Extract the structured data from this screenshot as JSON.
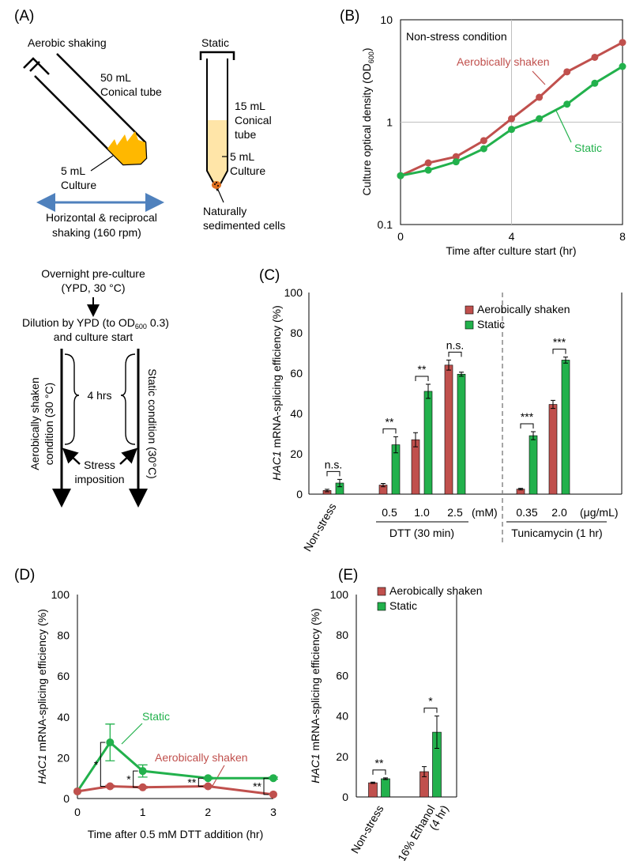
{
  "colors": {
    "shaken": "#C0504D",
    "static": "#22B14C",
    "axis": "#000000",
    "grid": "#BFBFBF",
    "tube_liquid": "#FFE5A8",
    "culture_orange": "#FFB800",
    "arrow_blue": "#4F81BD",
    "pellet": "#E07020"
  },
  "panel_a": {
    "label": "(A)",
    "aerobic_title": "Aerobic shaking",
    "tube50_line1": "50 mL",
    "tube50_line2": "Conical tube",
    "culture_left_line1": "5 mL",
    "culture_left_line2": "Culture",
    "shaking_line1": "Horizontal & reciprocal",
    "shaking_line2": "shaking (160 rpm)",
    "static_title": "Static",
    "tube15_line1": "15 mL",
    "tube15_line2": "Conical",
    "tube15_line3": "tube",
    "culture_right_line1": "5 mL",
    "culture_right_line2": "Culture",
    "sediment_line1": "Naturally",
    "sediment_line2": "sedimented cells",
    "preculture_line1": "Overnight pre-culture",
    "preculture_line2": "(YPD, 30 °C)",
    "dilution_line1a": "Dilution by YPD (to OD",
    "dilution_sub": "600",
    "dilution_line1b": " 0.3)",
    "dilution_line2": "and culture start",
    "hours": "4 hrs",
    "stress_line1": "Stress",
    "stress_line2": "imposition",
    "left_condition_line1": "Aerobically shaken",
    "left_condition_line2": "condition (30 °C)",
    "right_condition": "Static condition (30°C)"
  },
  "panel_b": {
    "label": "(B)",
    "annotation": "Non-stress condition",
    "ylabel_main": "Culture optical density (OD",
    "ylabel_sub": "600",
    "ylabel_end": ")",
    "series_shaken_label": "Aerobically shaken",
    "series_static_label": "Static"
  },
  "panel_c": {
    "label": "(C)",
    "ylabel_italic": "HAC1",
    "ylabel_rest": " mRNA-splicing efficiency (%)",
    "legend_shaken": "Aerobically shaken",
    "legend_static": "Static",
    "unit_mm": "(mM)",
    "unit_ugml": "(μg/mL)",
    "group_dtt": "DTT (30 min)",
    "group_tunicamycin": "Tunicamycin (1 hr)",
    "sig": [
      "n.s.",
      "**",
      "**",
      "n.s.",
      "***",
      "***"
    ]
  },
  "panel_d": {
    "label": "(D)",
    "ylabel_italic": "HAC1",
    "ylabel_rest": " mRNA-splicing efficiency (%)",
    "series_static_label": "Static",
    "series_shaken_label": "Aerobically shaken",
    "sig": [
      "*",
      "*",
      "**",
      "**"
    ]
  },
  "panel_e": {
    "label": "(E)",
    "ylabel_italic": "HAC1",
    "ylabel_rest": " mRNA-splicing efficiency (%)",
    "legend_shaken": "Aerobically shaken",
    "legend_static": "Static",
    "sig": [
      "**",
      "*"
    ]
  },
  "chart_data": [
    {
      "id": "B",
      "type": "line",
      "title": "Non-stress condition",
      "xlabel": "Time after culture start (hr)",
      "ylabel": "Culture optical density (OD600)",
      "yscale": "log",
      "xlim": [
        0,
        8
      ],
      "ylim": [
        0.1,
        10
      ],
      "xticks": [
        0,
        4,
        8
      ],
      "yticks": [
        0.1,
        1,
        10
      ],
      "ytick_labels": [
        "0.1",
        "1",
        "10"
      ],
      "grid": true,
      "x": [
        0,
        1,
        2,
        3,
        4,
        5,
        6,
        7,
        8
      ],
      "series": [
        {
          "name": "Aerobically shaken",
          "values": [
            0.3,
            0.4,
            0.46,
            0.66,
            1.08,
            1.75,
            3.1,
            4.3,
            6.0
          ]
        },
        {
          "name": "Static",
          "values": [
            0.3,
            0.34,
            0.41,
            0.55,
            0.85,
            1.08,
            1.5,
            2.4,
            3.5
          ]
        }
      ]
    },
    {
      "id": "C",
      "type": "bar",
      "ylabel": "HAC1 mRNA-splicing efficiency (%)",
      "ylim": [
        0,
        100
      ],
      "yticks": [
        0,
        20,
        40,
        60,
        80,
        100
      ],
      "categories": [
        "Non-stress",
        "0.5",
        "1.0",
        "2.5",
        "0.35",
        "2.0"
      ],
      "series": [
        {
          "name": "Aerobically shaken",
          "values": [
            1.8,
            4.5,
            27,
            64,
            2.5,
            44.5
          ],
          "errors": [
            0.6,
            0.8,
            3.5,
            2.5,
            0.4,
            2
          ]
        },
        {
          "name": "Static",
          "values": [
            5.5,
            24.5,
            51,
            59.5,
            29,
            66.5
          ],
          "errors": [
            1.8,
            4,
            3.5,
            1,
            2,
            1.5
          ]
        }
      ]
    },
    {
      "id": "D",
      "type": "line",
      "xlabel": "Time after 0.5 mM DTT addition (hr)",
      "ylabel": "HAC1 mRNA-splicing efficiency (%)",
      "xlim": [
        0,
        3
      ],
      "ylim": [
        0,
        100
      ],
      "xticks": [
        0,
        1,
        2,
        3
      ],
      "yticks": [
        0,
        20,
        40,
        60,
        80,
        100
      ],
      "x": [
        0,
        0.5,
        1,
        2,
        3
      ],
      "series": [
        {
          "name": "Static",
          "values": [
            3.5,
            27.5,
            13.5,
            10,
            10
          ],
          "errors": [
            0,
            9,
            3,
            0.5,
            0.5
          ]
        },
        {
          "name": "Aerobically shaken",
          "values": [
            3.5,
            6,
            5.5,
            6,
            2
          ],
          "errors": [
            0,
            0.5,
            0.5,
            0.5,
            0.3
          ]
        }
      ]
    },
    {
      "id": "E",
      "type": "bar",
      "ylabel": "HAC1 mRNA-splicing efficiency (%)",
      "ylim": [
        0,
        100
      ],
      "yticks": [
        0,
        20,
        40,
        60,
        80,
        100
      ],
      "categories": [
        "Non-stress",
        "16% Ethanol (4 hr)"
      ],
      "category_lines": [
        [
          "Non-stress"
        ],
        [
          "16% Ethanol",
          "(4 hr)"
        ]
      ],
      "series": [
        {
          "name": "Aerobically shaken",
          "values": [
            7,
            12.5
          ],
          "errors": [
            0.3,
            2.5
          ]
        },
        {
          "name": "Static",
          "values": [
            9,
            32
          ],
          "errors": [
            0.4,
            8
          ]
        }
      ]
    }
  ]
}
